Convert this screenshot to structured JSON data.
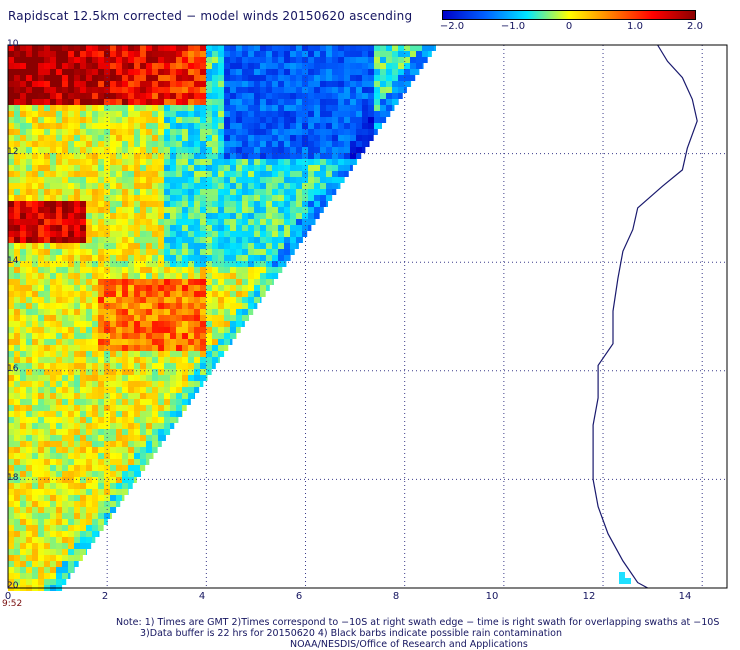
{
  "title": "Rapidscat 12.5km corrected − model winds 20150620 ascending",
  "colorbar": {
    "labels": [
      "−2.0",
      "−1.0",
      "0",
      "1.0",
      "2.0"
    ],
    "values": [
      -2.0,
      -1.0,
      0,
      1.0,
      2.0
    ],
    "colors": [
      "#0000c8",
      "#0060ff",
      "#00e6ff",
      "#ffff00",
      "#ff7f00",
      "#ff0000",
      "#8b0000"
    ]
  },
  "x_axis": {
    "ticks": [
      "0",
      "2",
      "4",
      "6",
      "8",
      "10",
      "12",
      "14"
    ],
    "values": [
      0,
      2,
      4,
      6,
      8,
      10,
      12,
      14
    ]
  },
  "y_axis": {
    "ticks": [
      "10",
      "12",
      "14",
      "16",
      "18",
      "20"
    ],
    "values": [
      -10,
      -12,
      -14,
      -16,
      -18,
      -20
    ]
  },
  "swath_time": "9:52",
  "notes": [
    "Note: 1) Times are GMT 2)Times correspond to −10S at right swath edge − time is right swath for overlapping swaths at −10S",
    "3)Data buffer is 22 hrs for 20150620 4) Black barbs indicate possible rain contamination",
    "NOAA/NESDIS/Office of Research and Applications"
  ],
  "map_data": {
    "lon_range": [
      0,
      14.5
    ],
    "lat_range": [
      -20,
      -10
    ],
    "grid": true,
    "coastline_color": "#1a1a6e"
  }
}
